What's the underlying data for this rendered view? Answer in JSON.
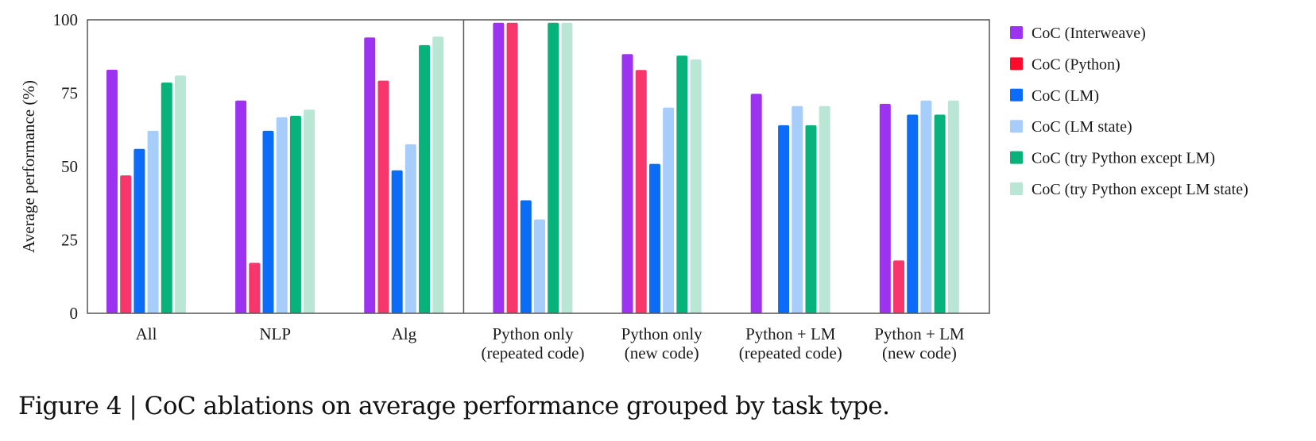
{
  "chart_data": {
    "type": "bar",
    "title": "",
    "xlabel": "",
    "ylabel": "Average performance (%)",
    "ylim": [
      0,
      100
    ],
    "yticks": [
      0,
      25,
      50,
      75,
      100
    ],
    "grid": false,
    "legend_position": "right",
    "divider_after_category": "Alg",
    "categories": [
      [
        "All"
      ],
      [
        "NLP"
      ],
      [
        "Alg"
      ],
      [
        "Python only",
        "(repeated code)"
      ],
      [
        "Python only",
        "(new code)"
      ],
      [
        "Python + LM",
        "(repeated code)"
      ],
      [
        "Python + LM",
        "(new code)"
      ]
    ],
    "series": [
      {
        "name": "CoC (Interweave)",
        "color": "#9b33f0",
        "swatch": "#9b33f0",
        "values": [
          83.0,
          72.5,
          94.0,
          99.0,
          88.3,
          74.8,
          71.4
        ]
      },
      {
        "name": "CoC (Python)",
        "color": "#f7376b",
        "swatch": "#ff0a2c",
        "values": [
          47.0,
          17.2,
          79.3,
          99.0,
          82.9,
          0,
          18.0
        ]
      },
      {
        "name": "CoC (LM)",
        "color": "#0a6cf7",
        "swatch": "#0a6cf7",
        "values": [
          56.0,
          62.2,
          48.7,
          38.5,
          50.9,
          64.1,
          67.7
        ]
      },
      {
        "name": "CoC (LM state)",
        "color": "#a7cdfb",
        "swatch": "#a7cdfb",
        "values": [
          62.2,
          66.8,
          57.6,
          32.0,
          70.1,
          70.6,
          72.5
        ]
      },
      {
        "name": "CoC (try Python except LM)",
        "color": "#08b27b",
        "swatch": "#08b27b",
        "values": [
          78.6,
          67.3,
          91.4,
          99.0,
          87.8,
          64.1,
          67.7
        ]
      },
      {
        "name": "CoC (try Python except LM state)",
        "color": "#bae6d6",
        "swatch": "#bae6d6",
        "values": [
          81.0,
          69.4,
          94.3,
          99.0,
          86.5,
          70.6,
          72.5
        ]
      }
    ]
  },
  "caption": "Figure 4 | CoC ablations on average performance grouped by task type."
}
